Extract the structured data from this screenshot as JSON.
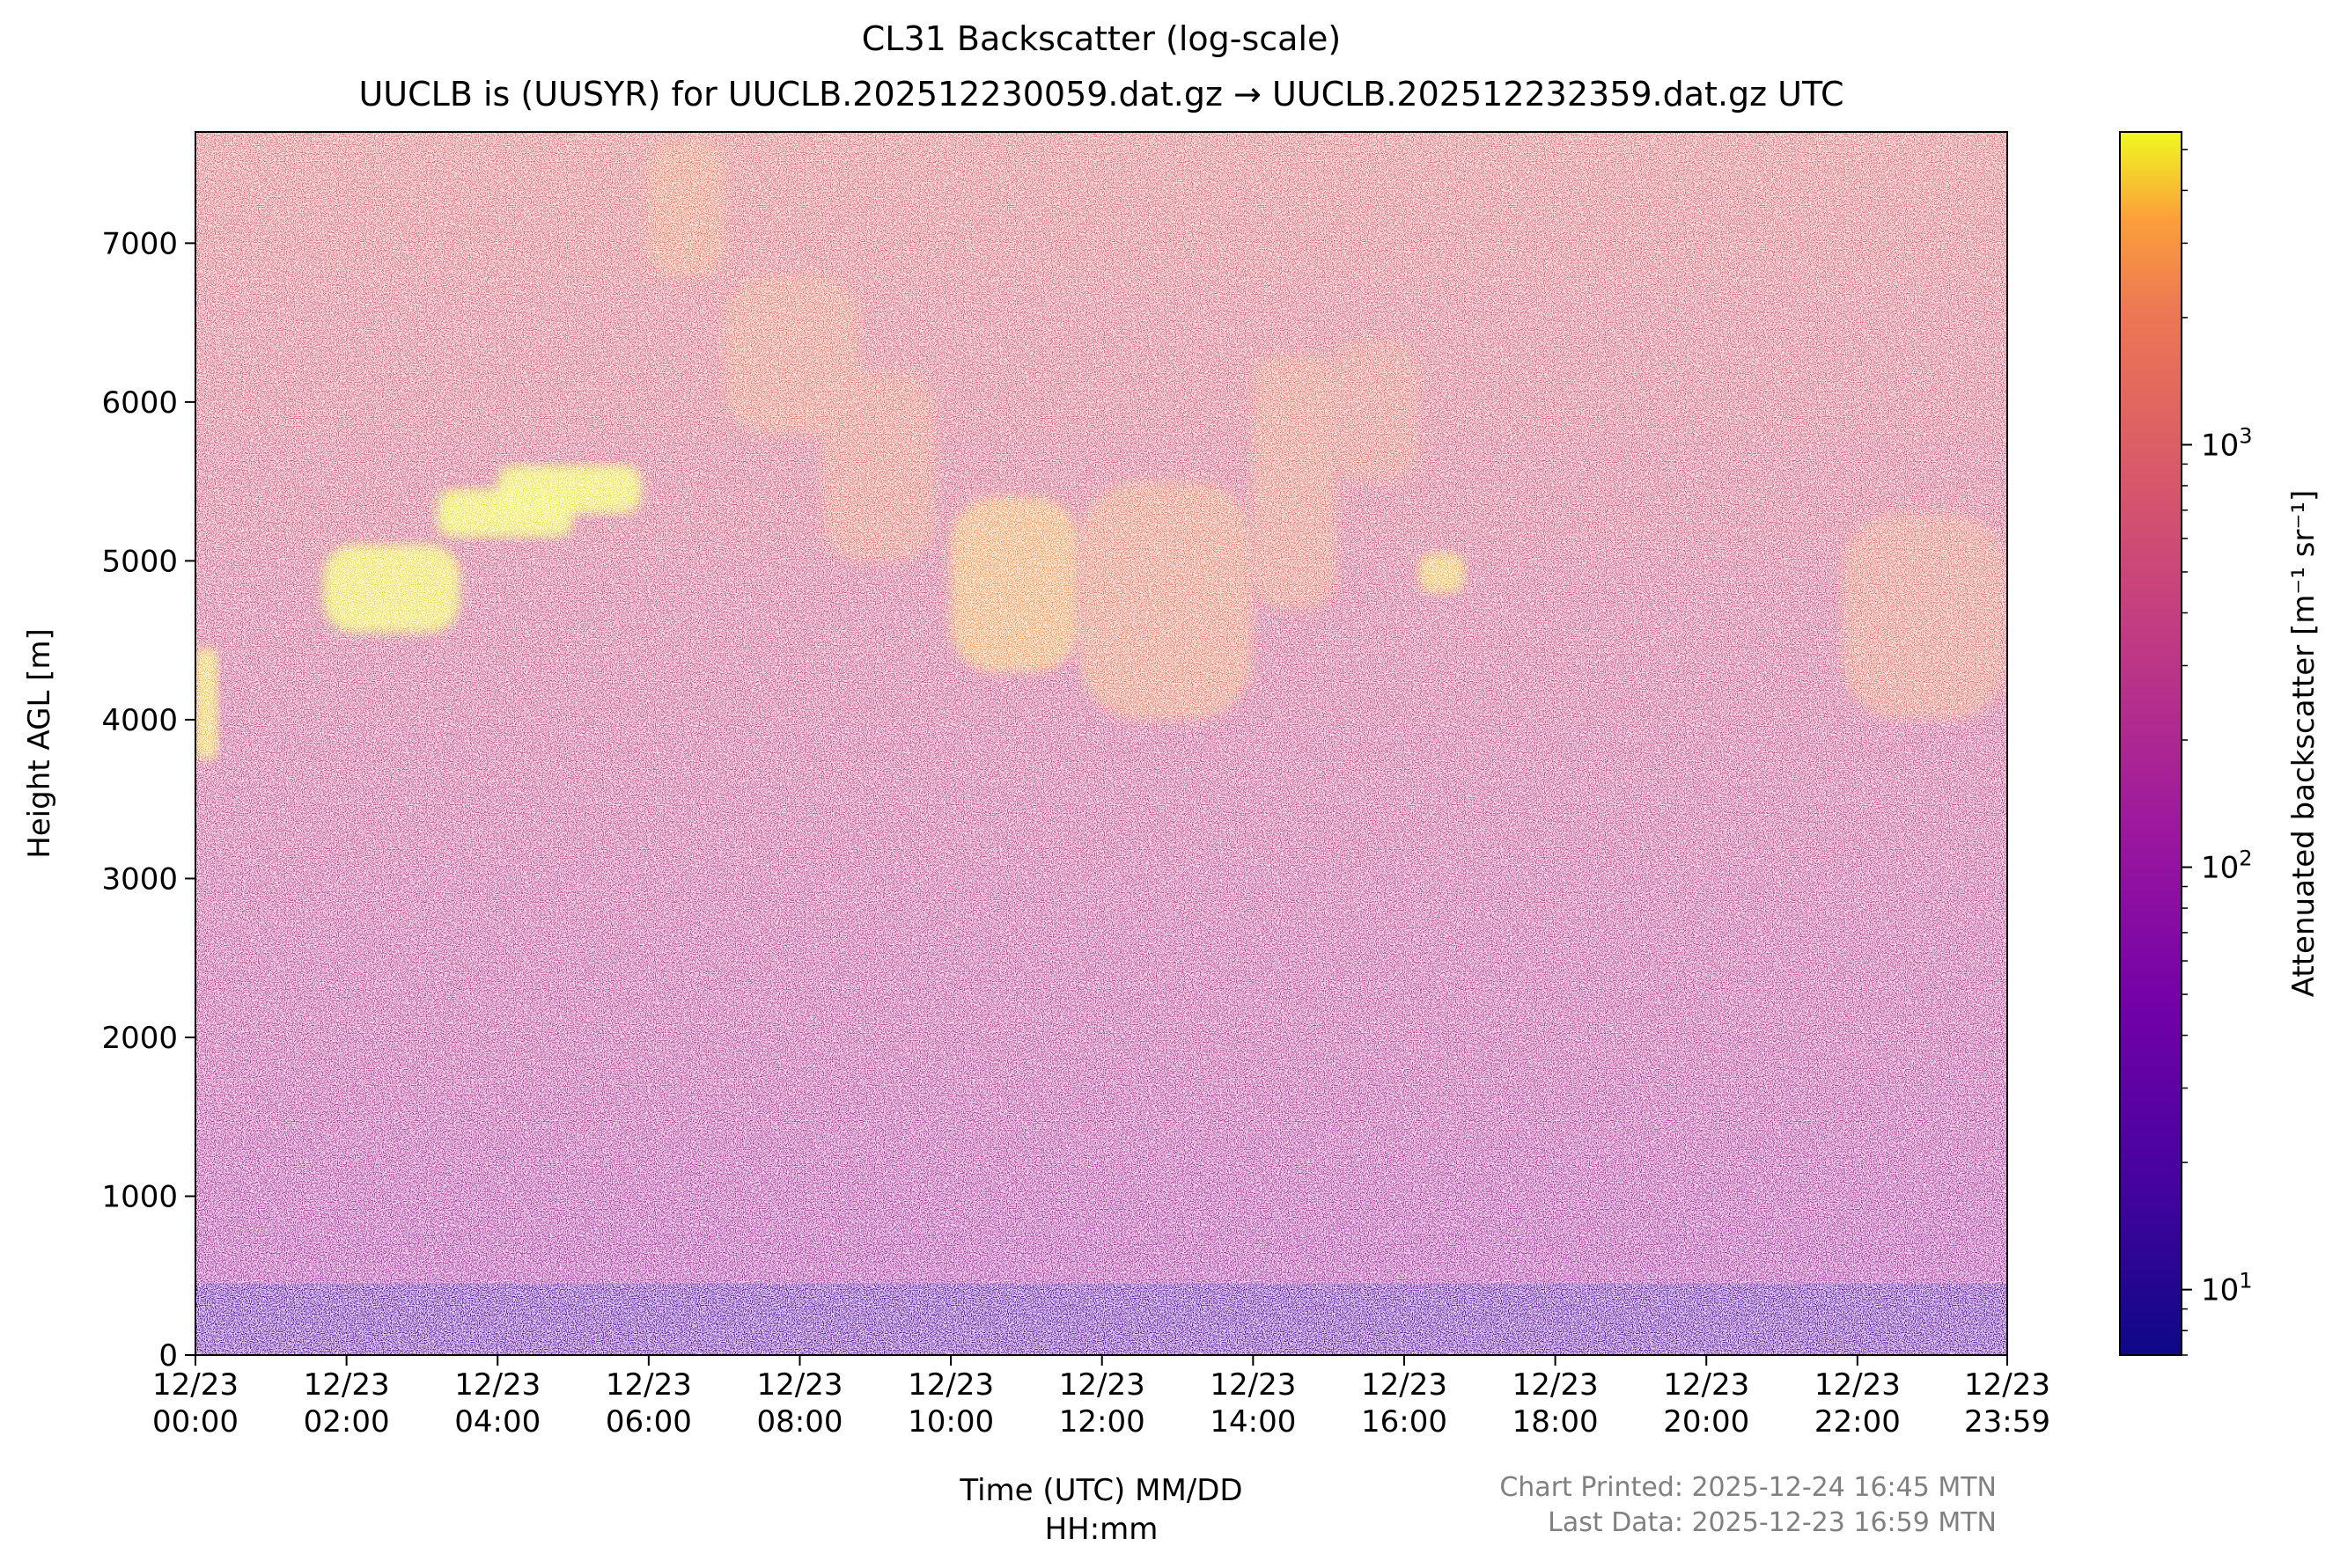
{
  "chart_data": {
    "type": "heatmap",
    "title": "CL31 Backscatter (log-scale)",
    "subtitle": "UUCLB is (UUSYR) for UUCLB.202512230059.dat.gz → UUCLB.202512232359.dat.gz UTC",
    "xlabel_line1": "Time (UTC) MM/DD",
    "xlabel_line2": "HH:mm",
    "ylabel": "Height AGL [m]",
    "colorbar_label": "Attenuated backscatter [m⁻¹ sr⁻¹]",
    "colormap": "plasma",
    "xlim_hours": [
      0,
      23.983
    ],
    "ylim_m": [
      0,
      7700
    ],
    "x_ticks": [
      {
        "hour": 0,
        "date": "12/23",
        "time": "00:00"
      },
      {
        "hour": 2,
        "date": "12/23",
        "time": "02:00"
      },
      {
        "hour": 4,
        "date": "12/23",
        "time": "04:00"
      },
      {
        "hour": 6,
        "date": "12/23",
        "time": "06:00"
      },
      {
        "hour": 8,
        "date": "12/23",
        "time": "08:00"
      },
      {
        "hour": 10,
        "date": "12/23",
        "time": "10:00"
      },
      {
        "hour": 12,
        "date": "12/23",
        "time": "12:00"
      },
      {
        "hour": 14,
        "date": "12/23",
        "time": "14:00"
      },
      {
        "hour": 16,
        "date": "12/23",
        "time": "16:00"
      },
      {
        "hour": 18,
        "date": "12/23",
        "time": "18:00"
      },
      {
        "hour": 20,
        "date": "12/23",
        "time": "20:00"
      },
      {
        "hour": 22,
        "date": "12/23",
        "time": "22:00"
      },
      {
        "hour": 23.983,
        "date": "12/23",
        "time": "23:59"
      }
    ],
    "y_ticks": [
      0,
      1000,
      2000,
      3000,
      4000,
      5000,
      6000,
      7000
    ],
    "colorbar_range": [
      7,
      5500
    ],
    "colorbar_ticks": [
      {
        "value": 10,
        "base": "10",
        "exp": "1"
      },
      {
        "value": 100,
        "base": "10",
        "exp": "2"
      },
      {
        "value": 1000,
        "base": "10",
        "exp": "3"
      }
    ],
    "features": [
      {
        "name": "surface aerosol layer",
        "t_start": 0,
        "t_end": 23.983,
        "z_bottom": 0,
        "z_top": 450,
        "backscatter": 25
      },
      {
        "name": "cloud",
        "t_start": 0.0,
        "t_end": 0.3,
        "z_bottom": 3750,
        "z_top": 4450,
        "backscatter": 4500
      },
      {
        "name": "cloud",
        "t_start": 1.7,
        "t_end": 3.5,
        "z_bottom": 4550,
        "z_top": 5100,
        "backscatter": 5000
      },
      {
        "name": "cloud",
        "t_start": 3.2,
        "t_end": 5.0,
        "z_bottom": 5150,
        "z_top": 5450,
        "backscatter": 5200
      },
      {
        "name": "cloud",
        "t_start": 4.0,
        "t_end": 5.9,
        "z_bottom": 5300,
        "z_top": 5600,
        "backscatter": 5200
      },
      {
        "name": "cloud",
        "t_start": 6.0,
        "t_end": 7.0,
        "z_bottom": 6800,
        "z_top": 7650,
        "backscatter": 1800
      },
      {
        "name": "cloud",
        "t_start": 7.0,
        "t_end": 8.8,
        "z_bottom": 5800,
        "z_top": 6800,
        "backscatter": 1500
      },
      {
        "name": "cloud",
        "t_start": 8.3,
        "t_end": 9.8,
        "z_bottom": 5000,
        "z_top": 6200,
        "backscatter": 1300
      },
      {
        "name": "cloud",
        "t_start": 10.0,
        "t_end": 11.7,
        "z_bottom": 4300,
        "z_top": 5400,
        "backscatter": 3000
      },
      {
        "name": "cloud",
        "t_start": 11.7,
        "t_end": 14.0,
        "z_bottom": 4000,
        "z_top": 5500,
        "backscatter": 1800
      },
      {
        "name": "cloud",
        "t_start": 14.0,
        "t_end": 15.1,
        "z_bottom": 4700,
        "z_top": 6300,
        "backscatter": 1500
      },
      {
        "name": "cloud",
        "t_start": 15.0,
        "t_end": 16.2,
        "z_bottom": 5500,
        "z_top": 6400,
        "backscatter": 1200
      },
      {
        "name": "cloud",
        "t_start": 16.2,
        "t_end": 16.8,
        "z_bottom": 4800,
        "z_top": 5050,
        "backscatter": 4000
      },
      {
        "name": "cloud",
        "t_start": 21.8,
        "t_end": 23.983,
        "z_bottom": 4000,
        "z_top": 5300,
        "backscatter": 1400
      }
    ]
  },
  "footer": {
    "printed": "Chart Printed: 2025-12-24 16:45 MTN",
    "last_data": "Last Data: 2025-12-23 16:59 MTN"
  }
}
